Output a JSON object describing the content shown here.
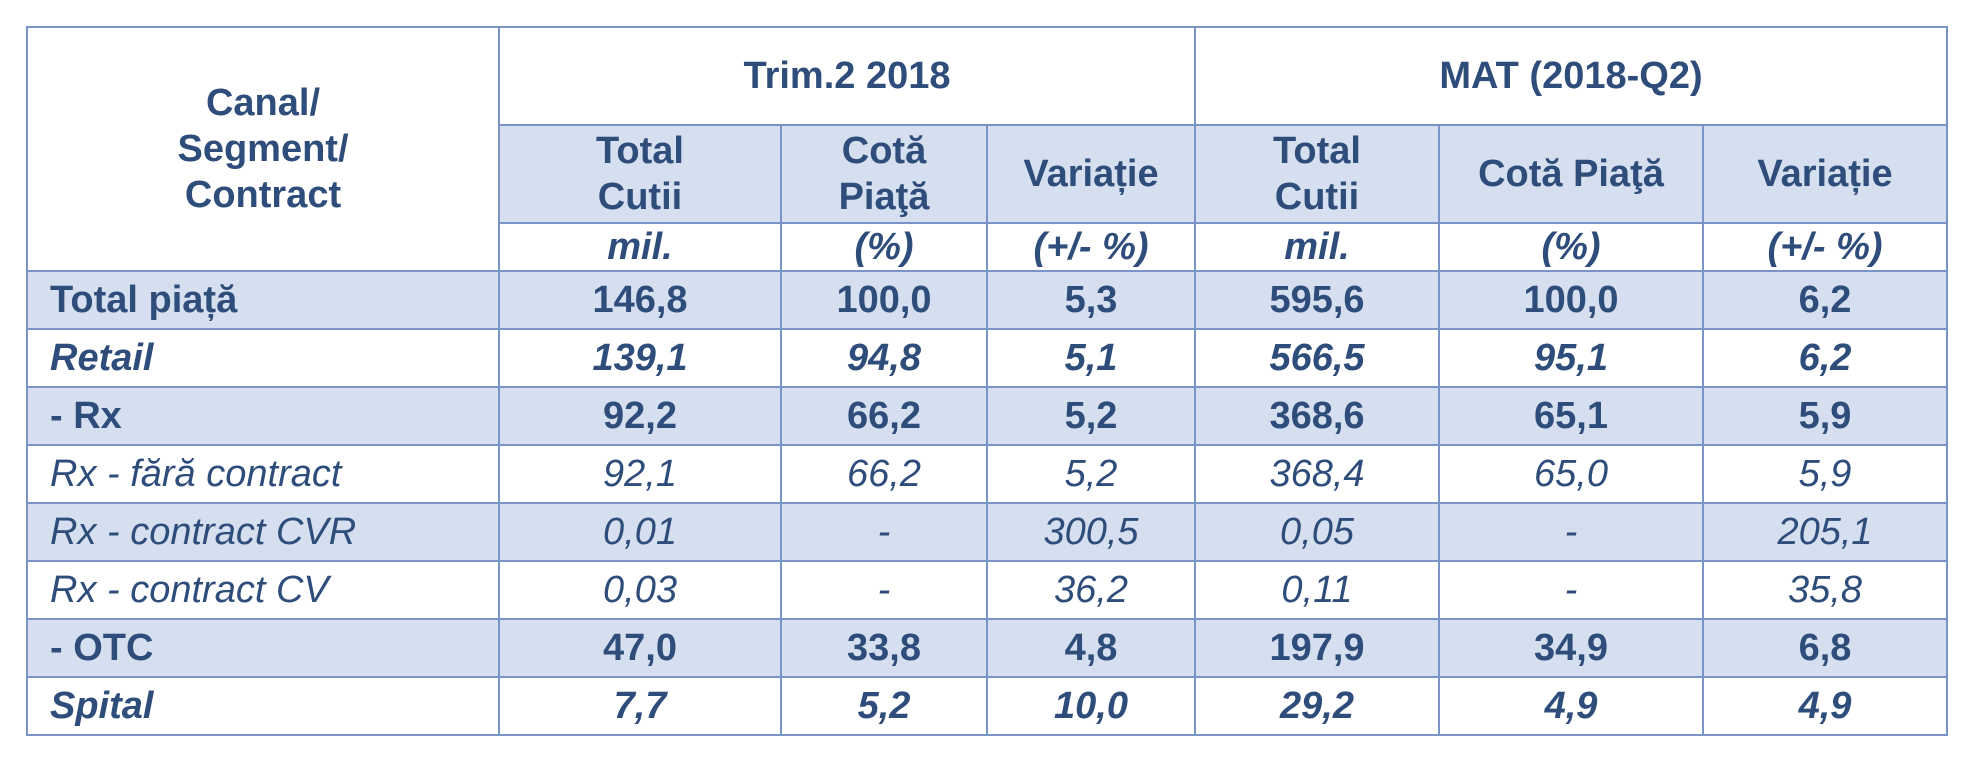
{
  "header": {
    "corner_label": "Canal/\nSegment/\nContract",
    "groups": [
      "Trim.2 2018",
      "MAT (2018-Q2)"
    ],
    "subheaders": [
      "Total\nCutii",
      "Cotă\nPiaţă",
      "Variație",
      "Total\nCutii",
      "Cotă Piaţă",
      "Variație"
    ],
    "units": [
      "mil.",
      "(%)",
      "(+/- %)",
      "mil.",
      "(%)",
      "(+/- %)"
    ]
  },
  "rows": [
    {
      "label": "Total piață",
      "values": [
        "146,8",
        "100,0",
        "5,3",
        "595,6",
        "100,0",
        "6,2"
      ],
      "style": "b",
      "shaded": true
    },
    {
      "label": "Retail",
      "values": [
        "139,1",
        "94,8",
        "5,1",
        "566,5",
        "95,1",
        "6,2"
      ],
      "style": "bi",
      "shaded": false
    },
    {
      "label": "- Rx",
      "values": [
        "92,2",
        "66,2",
        "5,2",
        "368,6",
        "65,1",
        "5,9"
      ],
      "style": "b",
      "shaded": true
    },
    {
      "label": "Rx - fără contract",
      "values": [
        "92,1",
        "66,2",
        "5,2",
        "368,4",
        "65,0",
        "5,9"
      ],
      "style": "i",
      "shaded": false
    },
    {
      "label": "Rx - contract CVR",
      "values": [
        "0,01",
        "-",
        "300,5",
        "0,05",
        "-",
        "205,1"
      ],
      "style": "i",
      "shaded": true
    },
    {
      "label": "Rx - contract CV",
      "values": [
        "0,03",
        "-",
        "36,2",
        "0,11",
        "-",
        "35,8"
      ],
      "style": "i",
      "shaded": false
    },
    {
      "label": "- OTC",
      "values": [
        "47,0",
        "33,8",
        "4,8",
        "197,9",
        "34,9",
        "6,8"
      ],
      "style": "b",
      "shaded": true
    },
    {
      "label": "Spital",
      "values": [
        "7,7",
        "5,2",
        "10,0",
        "29,2",
        "4,9",
        "4,9"
      ],
      "style": "bi",
      "shaded": false
    }
  ]
}
